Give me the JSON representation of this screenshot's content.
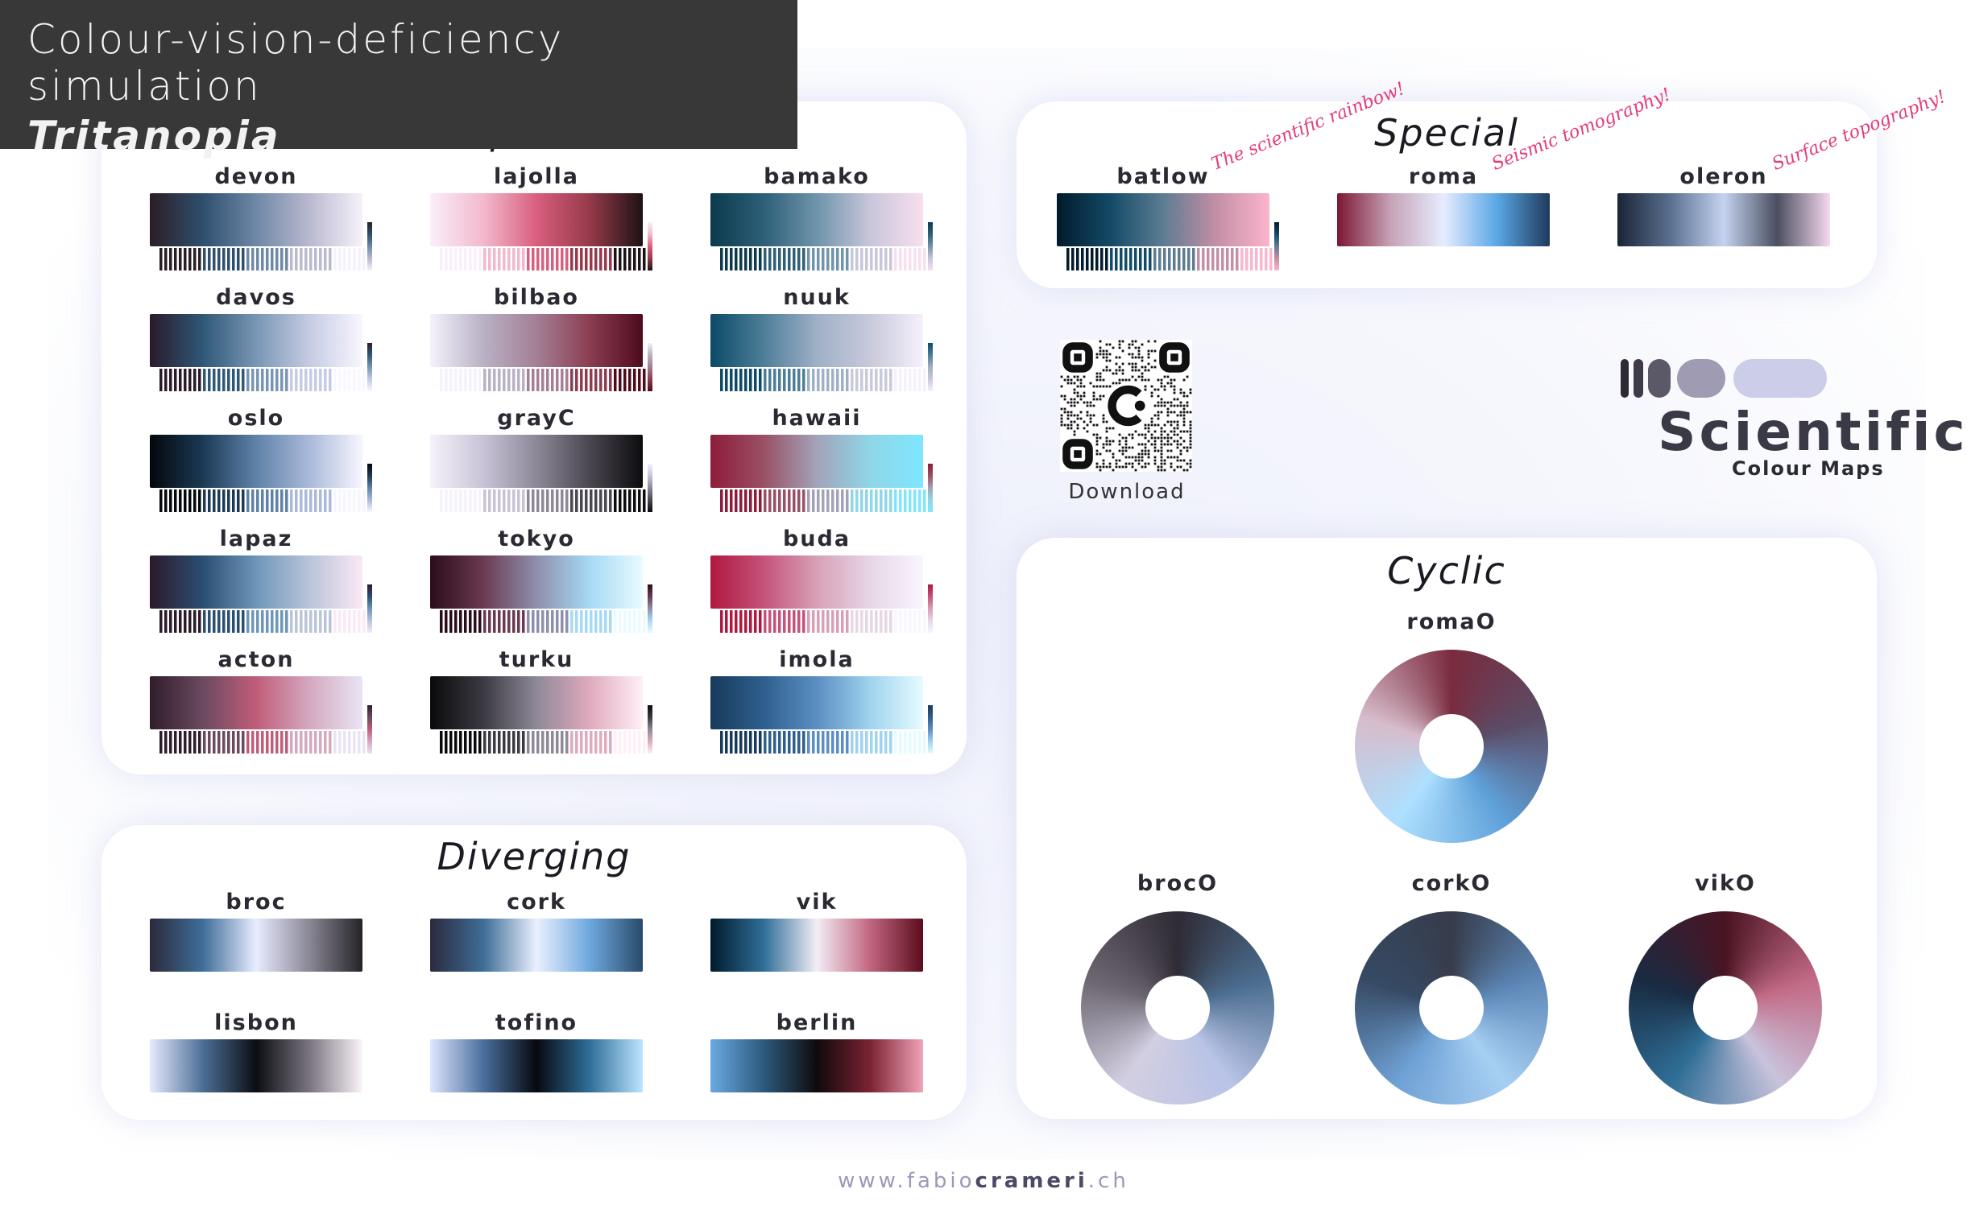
{
  "header": {
    "line1": "Colour-vision-deficiency simulation",
    "line2": "Tritanopia"
  },
  "sequential": {
    "title": "Sequential",
    "maps": [
      {
        "name": "devon",
        "colors": [
          "#2a1e25",
          "#2f4f6e",
          "#6e88a6",
          "#b9b9cf",
          "#f6f2fb"
        ]
      },
      {
        "name": "lajolla",
        "colors": [
          "#fbeefb",
          "#f2b9cc",
          "#d95f7e",
          "#963a4a",
          "#1c1214"
        ]
      },
      {
        "name": "bamako",
        "colors": [
          "#0b3a4c",
          "#2d5f78",
          "#6f94ab",
          "#c8c6da",
          "#f8dfee"
        ]
      },
      {
        "name": "davos",
        "colors": [
          "#2b1a2a",
          "#2f5877",
          "#7896b4",
          "#c5cbe3",
          "#f9f7ff"
        ]
      },
      {
        "name": "bilbao",
        "colors": [
          "#f4f2fb",
          "#b9b1c5",
          "#a47f95",
          "#8c3d52",
          "#4d0b1c"
        ]
      },
      {
        "name": "nuuk",
        "colors": [
          "#0c4a66",
          "#4d7e99",
          "#9fb0c6",
          "#c8c9db",
          "#f6f0fb"
        ]
      },
      {
        "name": "oslo",
        "colors": [
          "#04070c",
          "#1b3a55",
          "#5f82a8",
          "#aab9d9",
          "#f7f6ff"
        ]
      },
      {
        "name": "grayC",
        "colors": [
          "#f6f2fb",
          "#c8c3d6",
          "#8d8898",
          "#4a4750",
          "#0c0b0e"
        ]
      },
      {
        "name": "hawaii",
        "colors": [
          "#8d1c3a",
          "#9a5064",
          "#a2a3b9",
          "#8fd6e7",
          "#7fe6ff"
        ]
      },
      {
        "name": "lapaz",
        "colors": [
          "#2b1a2a",
          "#2b4e73",
          "#6d96b8",
          "#b9c4d9",
          "#fbe9f6"
        ]
      },
      {
        "name": "tokyo",
        "colors": [
          "#2b0c1a",
          "#6b3a52",
          "#8e8fac",
          "#a6d9f5",
          "#e9fbff"
        ]
      },
      {
        "name": "buda",
        "colors": [
          "#b0183f",
          "#c5527a",
          "#d7a0b6",
          "#e7d6e6",
          "#f8f6ff"
        ]
      },
      {
        "name": "acton",
        "colors": [
          "#2f1d2a",
          "#6b4a60",
          "#c05d79",
          "#d4a8bf",
          "#e9e4f4"
        ]
      },
      {
        "name": "turku",
        "colors": [
          "#0a0a0c",
          "#3b3a42",
          "#8e8998",
          "#e0aabd",
          "#fff0f7"
        ]
      },
      {
        "name": "imola",
        "colors": [
          "#173a5a",
          "#2e5f8e",
          "#5b8ec2",
          "#9fd3ee",
          "#e6fbff"
        ]
      }
    ]
  },
  "special": {
    "title": "Special",
    "maps": [
      {
        "name": "batlow",
        "note": "The scientific rainbow!",
        "colors": [
          "#011a2c",
          "#134a66",
          "#5d7c93",
          "#c48fa5",
          "#fbb5cd"
        ]
      },
      {
        "name": "roma",
        "note": "Seismic tomography!",
        "colors": [
          "#7d1733",
          "#c6a2b6",
          "#e7ecff",
          "#5aa8e6",
          "#1f3a5c"
        ]
      },
      {
        "name": "oleron",
        "note": "Surface topography!",
        "colors": [
          "#1a2436",
          "#5a7090",
          "#c5d3f0",
          "#4a4f60",
          "#f7d9ef"
        ]
      }
    ]
  },
  "diverging": {
    "title": "Diverging",
    "maps": [
      {
        "name": "broc",
        "colors": [
          "#2b2a3c",
          "#3e6e99",
          "#e8ecff",
          "#8a8796",
          "#252326"
        ]
      },
      {
        "name": "cork",
        "colors": [
          "#2c2a3f",
          "#3e6d96",
          "#eaf0ff",
          "#6ea8de",
          "#294a6b"
        ]
      },
      {
        "name": "vik",
        "colors": [
          "#011a2c",
          "#2f6e98",
          "#f2eef6",
          "#c26680",
          "#5a0c1c"
        ]
      },
      {
        "name": "lisbon",
        "colors": [
          "#e6eaff",
          "#4c6f96",
          "#0a0d12",
          "#7a7480",
          "#fbf5f9"
        ]
      },
      {
        "name": "tofino",
        "colors": [
          "#dfe6ff",
          "#4a6f9d",
          "#06090f",
          "#2f6e99",
          "#bde5ff"
        ]
      },
      {
        "name": "berlin",
        "colors": [
          "#6ba9e3",
          "#2c5a7d",
          "#0f0a0c",
          "#7a2232",
          "#f2a3b8"
        ]
      }
    ]
  },
  "cyclic": {
    "title": "Cyclic",
    "rings": [
      {
        "name": "romaO",
        "colors": [
          "#7a2b3e",
          "#5b4c66",
          "#5ea0d9",
          "#aee0ff",
          "#d7bccb",
          "#7a2b3e"
        ]
      },
      {
        "name": "brocO",
        "colors": [
          "#2f2b35",
          "#4b6d8f",
          "#b8c3e6",
          "#d3cfe2",
          "#6c6670",
          "#2f2b35"
        ]
      },
      {
        "name": "corkO",
        "colors": [
          "#363c4b",
          "#5d88b8",
          "#a7cff3",
          "#6fa1d5",
          "#364a64",
          "#363c4b"
        ]
      },
      {
        "name": "vikO",
        "colors": [
          "#4a1422",
          "#c26a86",
          "#c9c3dc",
          "#2f6e96",
          "#192b42",
          "#4a1422"
        ]
      }
    ]
  },
  "qr": {
    "label": "Download"
  },
  "logo": {
    "word": "Scientific",
    "sub": "Colour Maps"
  },
  "footer": {
    "prefix": "www.fabio",
    "bold": "crameri",
    "suffix": ".ch"
  }
}
